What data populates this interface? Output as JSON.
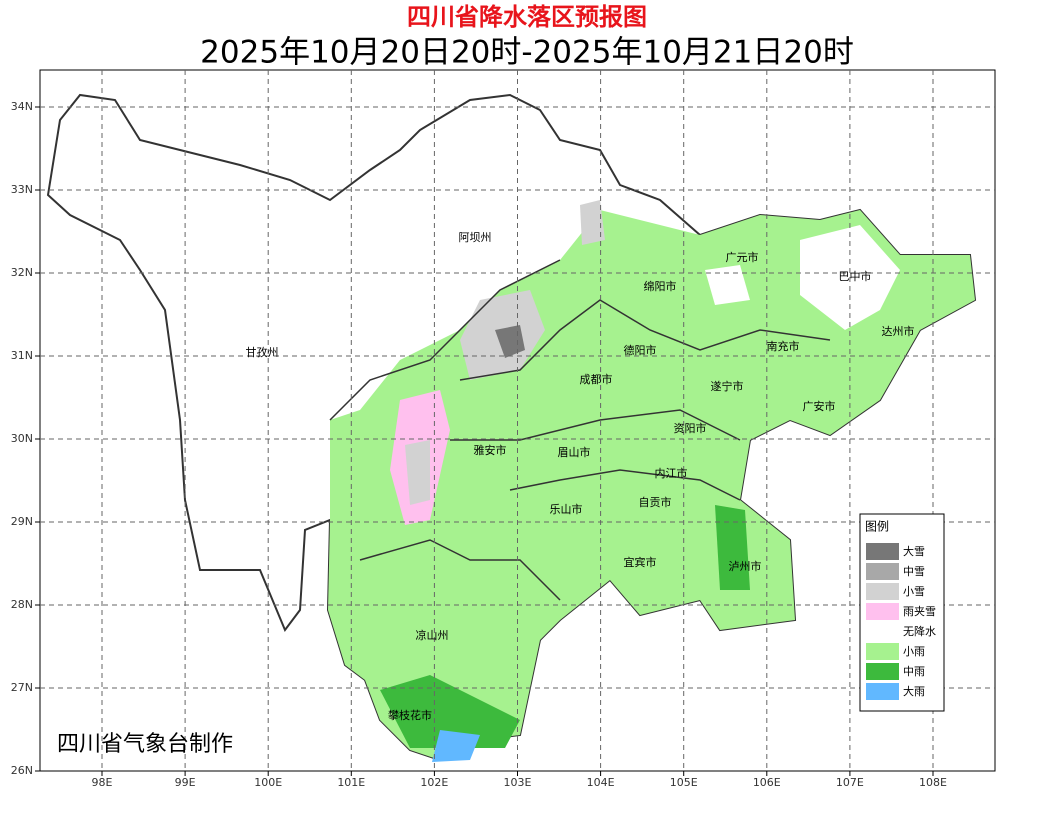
{
  "header": {
    "title": "四川省降水落区预报图",
    "subtitle": "2025年10月20日20时-2025年10月21日20时"
  },
  "map": {
    "lon_labels": [
      "98E",
      "99E",
      "100E",
      "101E",
      "102E",
      "103E",
      "104E",
      "105E",
      "106E",
      "107E",
      "108E"
    ],
    "lat_labels": [
      "34N",
      "33N",
      "32N",
      "31N",
      "30N",
      "29N",
      "28N",
      "27N",
      "26N"
    ],
    "places": [
      "阿坝州",
      "甘孜州",
      "广元市",
      "巴中市",
      "绵阳市",
      "达州市",
      "德阳市",
      "南充市",
      "成都市",
      "遂宁市",
      "广安市",
      "资阳市",
      "雅安市",
      "眉山市",
      "内江市",
      "自贡市",
      "乐山市",
      "宜宾市",
      "泸州市",
      "凉山州",
      "攀枝花市"
    ]
  },
  "legend": {
    "title": "图例",
    "items": [
      {
        "label": "大雪",
        "color": "#777777"
      },
      {
        "label": "中雪",
        "color": "#a8a8a8"
      },
      {
        "label": "小雪",
        "color": "#d2d2d2"
      },
      {
        "label": "雨夹雪",
        "color": "#ffc0ee"
      },
      {
        "label": "无降水",
        "color": "#ffffff"
      },
      {
        "label": "小雨",
        "color": "#a6f28f"
      },
      {
        "label": "中雨",
        "color": "#3dba3d"
      },
      {
        "label": "大雨",
        "color": "#61b8ff"
      }
    ]
  },
  "credit": "四川省气象台制作"
}
